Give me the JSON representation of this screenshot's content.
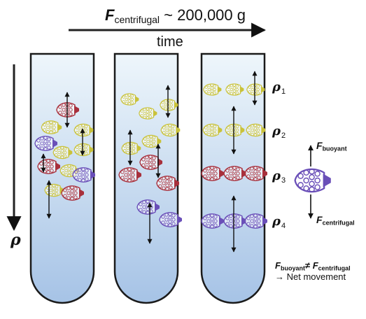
{
  "header": {
    "force_symbol": "F",
    "force_subscript": "centrifugal",
    "force_value": "~ 200,000 g",
    "time_label": "time"
  },
  "axis": {
    "density_symbol": "ρ"
  },
  "density_levels": [
    {
      "symbol": "ρ",
      "index": "1"
    },
    {
      "symbol": "ρ",
      "index": "2"
    },
    {
      "symbol": "ρ",
      "index": "3"
    },
    {
      "symbol": "ρ",
      "index": "4"
    }
  ],
  "legend": {
    "buoyant_symbol": "F",
    "buoyant_subscript": "buoyant",
    "centrifugal_symbol": "F",
    "centrifugal_subscript": "centrifugal",
    "inequality_lhs_symbol": "F",
    "inequality_lhs_subscript": "buoyant",
    "inequality_op": "≠",
    "inequality_rhs_symbol": "F",
    "inequality_rhs_subscript": "centrifugal",
    "net_movement": "→ Net movement"
  },
  "colors": {
    "tube_top": "#eef6fb",
    "tube_bottom": "#a6c3e6",
    "tube_stroke": "#1a1a1a",
    "particle_yellow": "#c9c23a",
    "particle_red": "#a8303c",
    "particle_purple": "#6a4fb8"
  }
}
